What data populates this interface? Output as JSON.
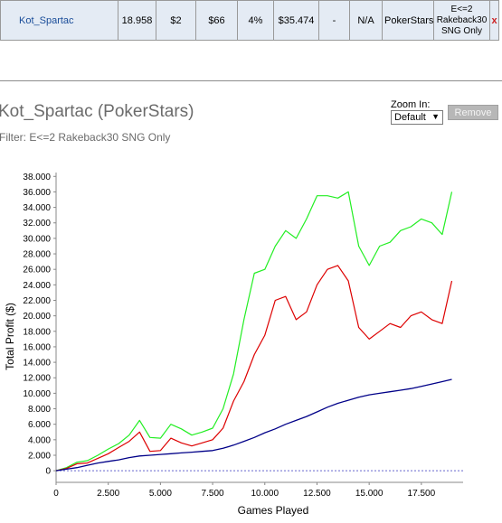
{
  "summary_row": {
    "player": "Kot_Spartac",
    "games": "18.958",
    "avg_stake": "$2",
    "total_profit_cell": "$66",
    "roi": "4%",
    "total_net": "$35.474",
    "dash": "-",
    "na": "N/A",
    "site": "PokerStars",
    "filter_line1": "E<=2",
    "filter_line2": "Rakeback30",
    "filter_line3": "SNG Only",
    "remove_x": "x"
  },
  "header": {
    "title": "Kot_Spartac (PokerStars)",
    "filter": "Filter: E<=2 Rakeback30 SNG Only"
  },
  "controls": {
    "zoom_label": "Zoom In:",
    "zoom_value": "Default",
    "remove_label": "Remove"
  },
  "colors": {
    "green_line": "#22ee22",
    "red_line": "#dd0000",
    "blue_line": "#000088",
    "zero_line": "#6666cc"
  },
  "chart_data": {
    "type": "line",
    "xlabel": "Games Played",
    "ylabel": "Total Profit ($)",
    "xlim": [
      0,
      19500
    ],
    "ylim": [
      -1500,
      38500
    ],
    "x_ticks": [
      0,
      2500,
      5000,
      7500,
      10000,
      12500,
      15000,
      17500
    ],
    "x_tick_labels": [
      "0",
      "2.500",
      "5.000",
      "7.500",
      "10.000",
      "12.500",
      "15.000",
      "17.500"
    ],
    "y_ticks": [
      0,
      2000,
      4000,
      6000,
      8000,
      10000,
      12000,
      14000,
      16000,
      18000,
      20000,
      22000,
      24000,
      26000,
      28000,
      30000,
      32000,
      34000,
      36000,
      38000
    ],
    "y_tick_labels": [
      "0",
      "2.000",
      "4.000",
      "6.000",
      "8.000",
      "10.000",
      "12.000",
      "14.000",
      "16.000",
      "18.000",
      "20.000",
      "22.000",
      "24.000",
      "26.000",
      "28.000",
      "30.000",
      "32.000",
      "34.000",
      "36.000",
      "38.000"
    ],
    "x": [
      0,
      500,
      1000,
      1500,
      2000,
      2500,
      3000,
      3500,
      4000,
      4500,
      5000,
      5500,
      6000,
      6500,
      7000,
      7500,
      8000,
      8500,
      9000,
      9500,
      10000,
      10500,
      11000,
      11500,
      12000,
      12500,
      13000,
      13500,
      14000,
      14500,
      15000,
      15500,
      16000,
      16500,
      17000,
      17500,
      18000,
      18500,
      18958
    ],
    "series": [
      {
        "values": [
          0,
          400,
          1100,
          1300,
          2000,
          2800,
          3500,
          4600,
          6500,
          4300,
          4200,
          6000,
          5400,
          4600,
          5000,
          5500,
          8000,
          12500,
          19500,
          25500,
          26000,
          29000,
          31000,
          30000,
          32500,
          35500,
          35500,
          35200,
          36000,
          29000,
          26500,
          29000,
          29500,
          31000,
          31500,
          32500,
          32000,
          30500,
          36000
        ]
      },
      {
        "values": [
          0,
          300,
          900,
          1000,
          1600,
          2200,
          3000,
          3800,
          5000,
          2500,
          2600,
          4200,
          3600,
          3200,
          3600,
          4000,
          5500,
          9000,
          11500,
          15000,
          17500,
          22000,
          22500,
          19500,
          20500,
          24000,
          26000,
          26500,
          24500,
          18500,
          17000,
          18000,
          19000,
          18500,
          20000,
          20500,
          19500,
          19000,
          24500
        ]
      },
      {
        "values": [
          0,
          200,
          400,
          700,
          1000,
          1200,
          1400,
          1700,
          1900,
          2000,
          2100,
          2200,
          2300,
          2400,
          2500,
          2600,
          2900,
          3300,
          3800,
          4300,
          4900,
          5400,
          6000,
          6500,
          7000,
          7600,
          8200,
          8700,
          9100,
          9500,
          9800,
          10000,
          10200,
          10400,
          10600,
          10900,
          11200,
          11500,
          11800
        ]
      }
    ]
  }
}
